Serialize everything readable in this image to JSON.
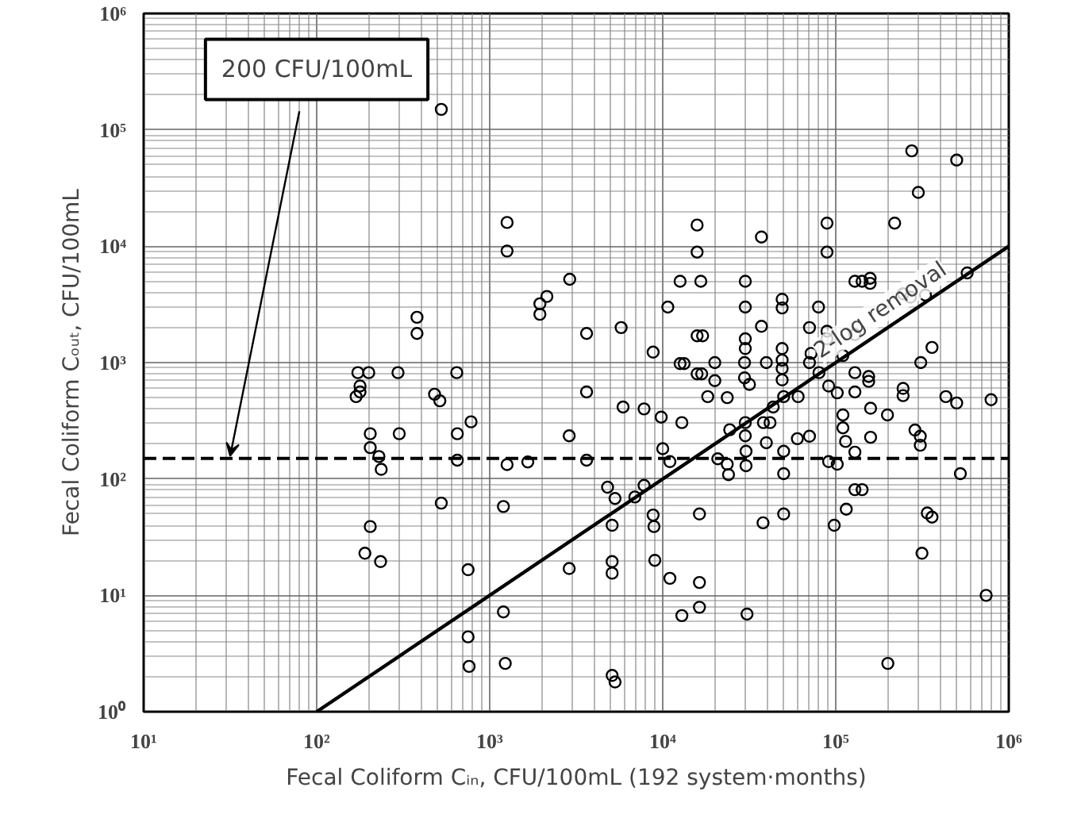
{
  "chart_data": {
    "type": "scatter",
    "xlabel": "Fecal Coliform Cᵢₙ, CFU/100mL (192 system·months)",
    "ylabel": "Fecal Coliform Cₒᵤₜ, CFU/100mL",
    "log": "xy",
    "grid": true,
    "xlim": [
      10,
      1000000
    ],
    "ylim": [
      1,
      1000000
    ],
    "xticks": [
      {
        "value": 10,
        "label": "10¹"
      },
      {
        "value": 100,
        "label": "10²"
      },
      {
        "value": 1000,
        "label": "10³"
      },
      {
        "value": 10000,
        "label": "10⁴"
      },
      {
        "value": 100000,
        "label": "10⁵"
      },
      {
        "value": 1000000,
        "label": "10⁶"
      }
    ],
    "yticks": [
      {
        "value": 1,
        "label": "10⁰"
      },
      {
        "value": 10,
        "label": "10¹"
      },
      {
        "value": 100,
        "label": "10²"
      },
      {
        "value": 1000,
        "label": "10³"
      },
      {
        "value": 10000,
        "label": "10⁴"
      },
      {
        "value": 100000,
        "label": "10⁵"
      },
      {
        "value": 1000000,
        "label": "10⁶"
      }
    ],
    "ref_lines": [
      {
        "axis": "y",
        "value": 150,
        "line_style": "dashed",
        "color": "#000000"
      }
    ],
    "annotations": [
      "200 CFU/100mL",
      {
        "text": "2-log removal",
        "x": 200000,
        "y": 2000
      }
    ],
    "series": [
      {
        "marker": "circle",
        "color": "#000000",
        "x": [
          525,
          1260,
          1260,
          2900,
          2140,
          1950,
          1950,
          380,
          380,
          3630,
          15800,
          15800,
          12600,
          16600,
          10700,
          5750,
          8800,
          15800,
          17000,
          37200,
          30000,
          30000,
          30000,
          30000,
          37200,
          49000,
          49000,
          49000,
          70500,
          79500,
          89000,
          89000,
          89000,
          89000,
          72000,
          129000,
          142000,
          158000,
          158000,
          129000,
          219000,
          275000,
          500000,
          300000,
          245000,
          270000,
          330000,
          575000,
          360000,
          110000,
          173,
          200,
          295,
          645,
          178,
          178,
          169,
          480,
          515,
          780,
          3630,
          5900,
          204,
          300,
          650,
          2880,
          204,
          229,
          236,
          650,
          1260,
          1660,
          3630,
          4800,
          5300,
          525,
          1200,
          5100,
          204,
          190,
          234,
          750,
          2880,
          5100,
          5100,
          1200,
          750,
          760,
          1230,
          5100,
          5300,
          12600,
          13300,
          20000,
          29700,
          39700,
          49000,
          70500,
          310000,
          49000,
          15800,
          16800,
          20000,
          29700,
          31700,
          49000,
          80000,
          129000,
          155000,
          155000,
          91000,
          102000,
          129000,
          245000,
          245000,
          433000,
          500000,
          790000,
          18200,
          23600,
          60600,
          7800,
          9800,
          12900,
          43500,
          50000,
          30000,
          24400,
          38200,
          41700,
          30000,
          39700,
          60000,
          70500,
          110000,
          110000,
          114000,
          159000,
          159000,
          199000,
          287000,
          308000,
          308000,
          129000,
          10000,
          11000,
          20800,
          23600,
          24000,
          30300,
          30300,
          50000,
          50000,
          91000,
          102000,
          525000,
          6900,
          7800,
          8800,
          8900,
          9000,
          11000,
          16300,
          16300,
          16300,
          12900,
          38000,
          50000,
          30700,
          98000,
          115000,
          129000,
          142000,
          338000,
          360000,
          315000,
          200000,
          740000
        ],
        "values": [
          150000,
          16000,
          9100,
          5200,
          3700,
          3200,
          2600,
          2450,
          1780,
          1780,
          15200,
          8900,
          5000,
          5000,
          3000,
          2000,
          1230,
          1700,
          1700,
          12000,
          5000,
          3000,
          1600,
          1320,
          2050,
          3500,
          2950,
          1320,
          2000,
          3000,
          15800,
          8900,
          1860,
          1600,
          1200,
          5000,
          5000,
          5300,
          4800,
          1740,
          15800,
          66000,
          55000,
          29000,
          3900,
          3650,
          3800,
          5900,
          1350,
          1150,
          820,
          820,
          820,
          820,
          630,
          560,
          510,
          535,
          470,
          310,
          560,
          415,
          245,
          245,
          245,
          235,
          186,
          156,
          121,
          145,
          133,
          140,
          145,
          85,
          68,
          62,
          58,
          40,
          39,
          23,
          19.5,
          16.6,
          17,
          19.5,
          15.5,
          7.2,
          4.4,
          2.45,
          2.6,
          2.05,
          1.8,
          980,
          980,
          1000,
          1000,
          1000,
          1050,
          1000,
          1000,
          890,
          800,
          800,
          700,
          740,
          650,
          710,
          820,
          820,
          760,
          690,
          630,
          550,
          560,
          600,
          520,
          510,
          450,
          480,
          510,
          500,
          510,
          400,
          340,
          305,
          415,
          510,
          305,
          265,
          305,
          305,
          235,
          205,
          222,
          233,
          355,
          275,
          210,
          405,
          228,
          355,
          263,
          233,
          195,
          170,
          182,
          141,
          149,
          134,
          109,
          173,
          130,
          173,
          111,
          141,
          134,
          111,
          70,
          88,
          49,
          39,
          20,
          14,
          50,
          12.9,
          7.9,
          6.7,
          42,
          50,
          6.9,
          40,
          55,
          81,
          81,
          51,
          47,
          23,
          2.6,
          10
        ]
      },
      {
        "type": "line",
        "marker": "none",
        "color": "#000000",
        "line_style": "solid",
        "x": [
          100,
          1000000
        ],
        "values": [
          1,
          10000
        ]
      }
    ]
  }
}
